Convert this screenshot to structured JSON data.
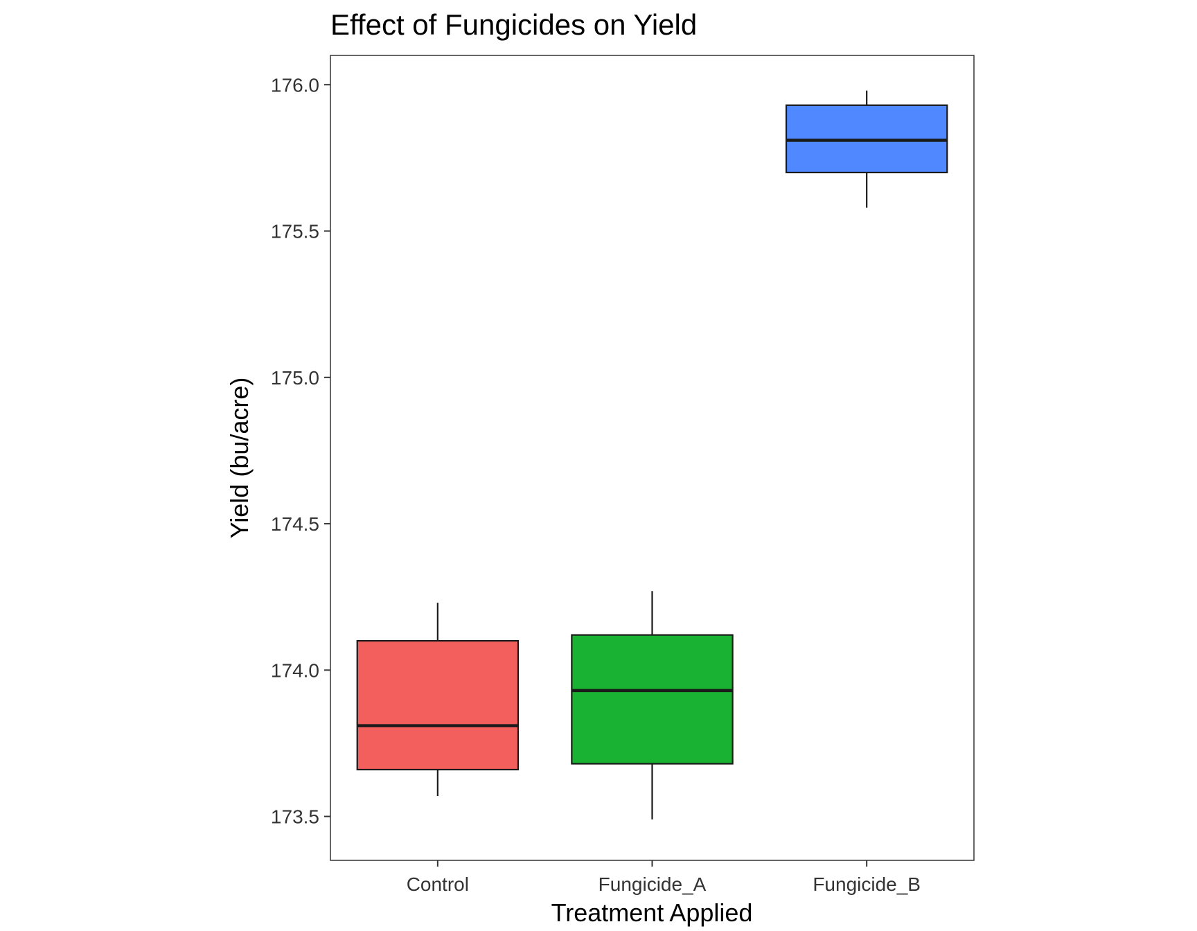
{
  "chart_data": {
    "type": "boxplot",
    "title": "Effect of Fungicides on Yield",
    "xlabel": "Treatment Applied",
    "ylabel": "Yield (bu/acre)",
    "categories": [
      "Control",
      "Fungicide_A",
      "Fungicide_B"
    ],
    "ylim": [
      173.35,
      176.1
    ],
    "yticks": [
      173.5,
      174.0,
      174.5,
      175.0,
      175.5,
      176.0
    ],
    "ytick_labels": [
      "173.5",
      "174.0",
      "174.5",
      "175.0",
      "175.5",
      "176.0"
    ],
    "series": [
      {
        "category": "Control",
        "min": 173.57,
        "q1": 173.66,
        "median": 173.81,
        "q3": 174.1,
        "max": 174.23,
        "color": "#F25F5C"
      },
      {
        "category": "Fungicide_A",
        "min": 173.49,
        "q1": 173.68,
        "median": 173.93,
        "q3": 174.12,
        "max": 174.27,
        "color": "#1AB232"
      },
      {
        "category": "Fungicide_B",
        "min": 175.58,
        "q1": 175.7,
        "median": 175.81,
        "q3": 175.93,
        "max": 175.98,
        "color": "#4F88FF"
      }
    ],
    "grid": false,
    "legend": "none"
  }
}
